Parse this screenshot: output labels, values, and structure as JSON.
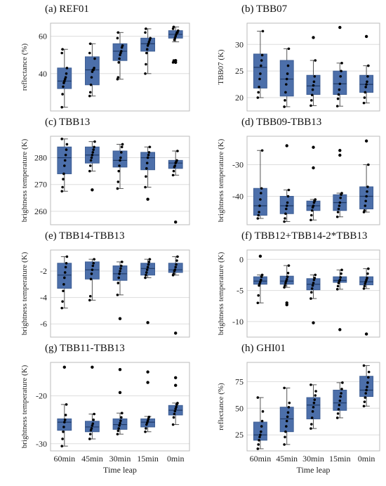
{
  "figure": {
    "x_title": "Time leap",
    "categories": [
      "60min",
      "45min",
      "30min",
      "15min",
      "0min"
    ]
  },
  "colors": {
    "box": "#4C6FAA",
    "box_edge": "#3E5E94",
    "median": "#1F3A66",
    "whisker": "#555555",
    "point": "#000000",
    "grid": "#DDDDDD",
    "frame": "#BBBBBB"
  },
  "chart_data": [
    {
      "type": "box",
      "title": "(a) REF01",
      "ylabel": "reflectance (%)",
      "ylim": [
        20,
        67
      ],
      "yticks": [
        40,
        60
      ],
      "boxes": [
        {
          "whislo": 22,
          "q1": 32,
          "med": 36,
          "q3": 43,
          "whishi": 53,
          "outliers": []
        },
        {
          "whislo": 28,
          "q1": 34,
          "med": 42,
          "q3": 49,
          "whishi": 56,
          "outliers": []
        },
        {
          "whislo": 37,
          "q1": 47,
          "med": 52,
          "q3": 56,
          "whishi": 62,
          "outliers": []
        },
        {
          "whislo": 40,
          "q1": 52,
          "med": 56,
          "q3": 59,
          "whishi": 64,
          "outliers": []
        },
        {
          "whislo": 57,
          "q1": 59,
          "med": 61,
          "q3": 63,
          "whishi": 65,
          "outliers": [
            47,
            46
          ]
        }
      ],
      "points": [
        [
          22,
          29,
          33,
          35,
          36,
          37,
          38,
          40,
          43,
          51,
          53
        ],
        [
          28,
          30,
          34,
          38,
          41,
          42,
          42,
          43,
          48,
          51,
          56
        ],
        [
          37,
          38,
          46,
          48,
          50,
          51,
          52,
          54,
          55,
          59,
          62
        ],
        [
          40,
          45,
          51,
          53,
          55,
          56,
          57,
          58,
          59,
          62,
          64
        ],
        [
          46,
          47,
          58,
          59,
          60,
          61,
          62,
          62,
          63,
          64,
          65
        ]
      ]
    },
    {
      "type": "box",
      "title": "(b) TBB07",
      "ylabel": "TBB07 (K)",
      "ylim": [
        17.5,
        34
      ],
      "yticks": [
        20,
        25,
        30
      ],
      "boxes": [
        {
          "whislo": 20,
          "q1": 21.8,
          "med": 25.7,
          "q3": 28.2,
          "whishi": 32.5,
          "outliers": []
        },
        {
          "whislo": 18.3,
          "q1": 20.3,
          "med": 23.5,
          "q3": 27,
          "whishi": 29.2,
          "outliers": []
        },
        {
          "whislo": 18.5,
          "q1": 20.6,
          "med": 22.2,
          "q3": 24.2,
          "whishi": 27,
          "outliers": [
            31.3
          ]
        },
        {
          "whislo": 18.4,
          "q1": 20.6,
          "med": 22.6,
          "q3": 25,
          "whishi": 26.5,
          "outliers": [
            33.2
          ]
        },
        {
          "whislo": 19,
          "q1": 21,
          "med": 22.5,
          "q3": 24.2,
          "whishi": 26,
          "outliers": [
            31.5
          ]
        }
      ],
      "points": [
        [
          20,
          21,
          22,
          23.5,
          24.5,
          26,
          27,
          28,
          32.5
        ],
        [
          18.3,
          19.5,
          21,
          22.5,
          23.5,
          24.5,
          26,
          29.2
        ],
        [
          18.5,
          19.5,
          20.5,
          21.5,
          22.3,
          23,
          24,
          27
        ],
        [
          18.4,
          19.8,
          20.6,
          21.5,
          22.6,
          24,
          25,
          26.5
        ],
        [
          19,
          20,
          21,
          22,
          22.5,
          23,
          24,
          26
        ]
      ]
    },
    {
      "type": "box",
      "title": "(c) TBB13",
      "ylabel": "brightness temperature (K)",
      "ylim": [
        255,
        288
      ],
      "yticks": [
        260,
        270,
        280
      ],
      "boxes": [
        {
          "whislo": 267.5,
          "q1": 274,
          "med": 280,
          "q3": 284,
          "whishi": 287,
          "outliers": []
        },
        {
          "whislo": 275,
          "q1": 278,
          "med": 281,
          "q3": 284,
          "whishi": 286,
          "outliers": [
            268
          ]
        },
        {
          "whislo": 268.5,
          "q1": 276.5,
          "med": 279,
          "q3": 282.5,
          "whishi": 285,
          "outliers": []
        },
        {
          "whislo": 269,
          "q1": 275.5,
          "med": 280,
          "q3": 282,
          "whishi": 284,
          "outliers": [
            264.5
          ]
        },
        {
          "whislo": 273.5,
          "q1": 276,
          "med": 278,
          "q3": 279,
          "whishi": 282.5,
          "outliers": [
            256
          ]
        }
      ],
      "points": [
        [
          267.5,
          269,
          272,
          274,
          277,
          279,
          281,
          283,
          285,
          287
        ],
        [
          275,
          277,
          279,
          280,
          281,
          282,
          283,
          284,
          286
        ],
        [
          268.5,
          271,
          275,
          277,
          279,
          280,
          282,
          284,
          285
        ],
        [
          269,
          273,
          276,
          278,
          280,
          281,
          282,
          284
        ],
        [
          273.5,
          275,
          276.5,
          277,
          278,
          278.5,
          279,
          282.5
        ]
      ]
    },
    {
      "type": "box",
      "title": "(d) TBB09-TBB13",
      "ylabel": "brightness temperature (K)",
      "ylim": [
        -49,
        -21
      ],
      "yticks": [
        -40,
        -30
      ],
      "boxes": [
        {
          "whislo": -47,
          "q1": -46,
          "med": -43,
          "q3": -37.5,
          "whishi": -25.5,
          "outliers": []
        },
        {
          "whislo": -48,
          "q1": -45.5,
          "med": -43,
          "q3": -40,
          "whishi": -38,
          "outliers": [
            -24
          ]
        },
        {
          "whislo": -47.5,
          "q1": -44.5,
          "med": -43,
          "q3": -41.5,
          "whishi": -41,
          "outliers": [
            -31,
            -24.5
          ]
        },
        {
          "whislo": -46.5,
          "q1": -44.5,
          "med": -42,
          "q3": -39.5,
          "whishi": -39,
          "outliers": [
            -27,
            -25.5
          ]
        },
        {
          "whislo": -45,
          "q1": -44,
          "med": -40,
          "q3": -37,
          "whishi": -30,
          "outliers": [
            -22.5
          ]
        }
      ],
      "points": [
        [
          -47,
          -46,
          -45,
          -43,
          -41,
          -39,
          -37.5,
          -25.5
        ],
        [
          -48,
          -47,
          -45.5,
          -44,
          -43,
          -42,
          -40,
          -38
        ],
        [
          -47.5,
          -46,
          -44.5,
          -43.5,
          -43,
          -42,
          -41.5,
          -41
        ],
        [
          -46.5,
          -45,
          -44,
          -43,
          -42,
          -40.5,
          -39.5,
          -39
        ],
        [
          -45,
          -44.5,
          -43,
          -41.5,
          -40,
          -38.5,
          -37,
          -30
        ]
      ]
    },
    {
      "type": "box",
      "title": "(e) TBB14-TBB13",
      "ylabel": "brightness temperature (K)",
      "ylim": [
        -7,
        -0.4
      ],
      "yticks": [
        -6,
        -4,
        -2
      ],
      "boxes": [
        {
          "whislo": -4.8,
          "q1": -3.3,
          "med": -2.3,
          "q3": -1.4,
          "whishi": -0.9,
          "outliers": []
        },
        {
          "whislo": -4.2,
          "q1": -2.6,
          "med": -1.9,
          "q3": -1.3,
          "whishi": -1.1,
          "outliers": []
        },
        {
          "whislo": -3.8,
          "q1": -2.7,
          "med": -2.2,
          "q3": -1.6,
          "whishi": -1.3,
          "outliers": [
            -5.6
          ]
        },
        {
          "whislo": -2.5,
          "q1": -2.3,
          "med": -1.8,
          "q3": -1.4,
          "whishi": -1.1,
          "outliers": [
            -5.9
          ]
        },
        {
          "whislo": -2.3,
          "q1": -2.1,
          "med": -1.9,
          "q3": -1.4,
          "whishi": -0.9,
          "outliers": [
            -6.7
          ]
        }
      ],
      "points": [
        [
          -4.8,
          -4.3,
          -3.5,
          -3,
          -2.5,
          -2.1,
          -1.7,
          -1.4,
          -0.9
        ],
        [
          -4.2,
          -3.9,
          -2.6,
          -2.2,
          -1.9,
          -1.6,
          -1.4,
          -1.1
        ],
        [
          -3.8,
          -2.9,
          -2.5,
          -2.2,
          -2,
          -1.8,
          -1.6,
          -1.3
        ],
        [
          -2.5,
          -2.3,
          -2.1,
          -1.9,
          -1.7,
          -1.5,
          -1.3,
          -1.1
        ],
        [
          -2.3,
          -2.2,
          -2,
          -1.9,
          -1.7,
          -1.5,
          -1.2,
          -0.9
        ]
      ]
    },
    {
      "type": "box",
      "title": "(f) TBB12+TBB14-2*TBB13",
      "ylabel": "brightness temperature (K)",
      "ylim": [
        -12.5,
        1.5
      ],
      "yticks": [
        -10,
        -5,
        0
      ],
      "boxes": [
        {
          "whislo": -7,
          "q1": -4,
          "med": -3.5,
          "q3": -2.8,
          "whishi": -2.5,
          "outliers": [
            0.5
          ]
        },
        {
          "whislo": -4.5,
          "q1": -4,
          "med": -3.5,
          "q3": -2.7,
          "whishi": -1,
          "outliers": [
            -7,
            -7.3
          ]
        },
        {
          "whislo": -6.3,
          "q1": -4.9,
          "med": -4,
          "q3": -3.1,
          "whishi": -2.5,
          "outliers": [
            -10.2
          ]
        },
        {
          "whislo": -4.8,
          "q1": -3.7,
          "med": -3.4,
          "q3": -2.8,
          "whishi": -1.7,
          "outliers": [
            -11.3
          ]
        },
        {
          "whislo": -4.7,
          "q1": -4.1,
          "med": -3.6,
          "q3": -2.8,
          "whishi": -1.5,
          "outliers": [
            -12
          ]
        }
      ],
      "points": [
        [
          -7,
          -5.8,
          -4.2,
          -3.9,
          -3.6,
          -3.3,
          -2.8,
          -2.5
        ],
        [
          -4.5,
          -4.2,
          -3.8,
          -3.5,
          -3.2,
          -2.8,
          -2.2,
          -1
        ],
        [
          -6.3,
          -5.3,
          -4.7,
          -4.2,
          -3.8,
          -3.3,
          -3,
          -2.5
        ],
        [
          -4.8,
          -4.3,
          -3.8,
          -3.5,
          -3.3,
          -2.9,
          -2.3,
          -1.7
        ],
        [
          -4.7,
          -4.3,
          -3.9,
          -3.6,
          -3.3,
          -3,
          -2.3,
          -1.5
        ]
      ]
    },
    {
      "type": "box",
      "title": "(g) TBB11-TBB13",
      "ylabel": "brightness temperature (K)",
      "ylim": [
        -31.5,
        -13
      ],
      "yticks": [
        -30,
        -20
      ],
      "boxes": [
        {
          "whislo": -30.5,
          "q1": -27.2,
          "med": -25.5,
          "q3": -24.8,
          "whishi": -21.8,
          "outliers": [
            -14
          ]
        },
        {
          "whislo": -29,
          "q1": -27.5,
          "med": -26.5,
          "q3": -25.3,
          "whishi": -23.8,
          "outliers": [
            -14
          ]
        },
        {
          "whislo": -28,
          "q1": -27,
          "med": -26,
          "q3": -24.8,
          "whishi": -23.6,
          "outliers": [
            -19.3,
            -14.5
          ]
        },
        {
          "whislo": -27.5,
          "q1": -26.5,
          "med": -25.5,
          "q3": -24.8,
          "whishi": -24.3,
          "outliers": [
            -17.2,
            -15
          ]
        },
        {
          "whislo": -26,
          "q1": -24,
          "med": -23,
          "q3": -22,
          "whishi": -21.5,
          "outliers": [
            -17.8,
            -16.2
          ]
        }
      ],
      "points": [
        [
          -30.5,
          -29,
          -27.5,
          -26.5,
          -25.5,
          -25,
          -24,
          -21.8
        ],
        [
          -29,
          -28,
          -27.2,
          -26.8,
          -26.2,
          -25.8,
          -25,
          -23.8
        ],
        [
          -28,
          -27.3,
          -26.8,
          -26.2,
          -25.7,
          -25.2,
          -24.5,
          -23.6
        ],
        [
          -27.5,
          -26.8,
          -26,
          -25.6,
          -25.2,
          -24.8,
          -24.4
        ],
        [
          -26,
          -24.5,
          -23.8,
          -23.2,
          -22.7,
          -22.3,
          -21.8,
          -21.5
        ]
      ]
    },
    {
      "type": "box",
      "title": "(h) GHI01",
      "ylabel": "reflectance (%)",
      "ylim": [
        10,
        93
      ],
      "yticks": [
        25,
        50,
        75
      ],
      "boxes": [
        {
          "whislo": 12,
          "q1": 20,
          "med": 25,
          "q3": 37,
          "whishi": 60,
          "outliers": []
        },
        {
          "whislo": 16,
          "q1": 28,
          "med": 40,
          "q3": 51,
          "whishi": 69,
          "outliers": []
        },
        {
          "whislo": 31,
          "q1": 40,
          "med": 53,
          "q3": 60,
          "whishi": 72,
          "outliers": []
        },
        {
          "whislo": 41,
          "q1": 48,
          "med": 55,
          "q3": 67,
          "whishi": 74,
          "outliers": []
        },
        {
          "whislo": 52,
          "q1": 61,
          "med": 67,
          "q3": 80,
          "whishi": 90,
          "outliers": []
        }
      ],
      "points": [
        [
          12,
          16,
          20,
          23,
          25,
          28,
          33,
          38,
          47,
          60
        ],
        [
          16,
          23,
          28,
          33,
          38,
          42,
          46,
          51,
          55,
          69
        ],
        [
          31,
          35,
          41,
          47,
          51,
          55,
          58,
          62,
          66,
          72
        ],
        [
          41,
          45,
          49,
          53,
          57,
          61,
          64,
          68,
          74
        ],
        [
          52,
          56,
          60,
          64,
          67,
          70,
          74,
          79,
          84,
          90
        ]
      ]
    }
  ]
}
